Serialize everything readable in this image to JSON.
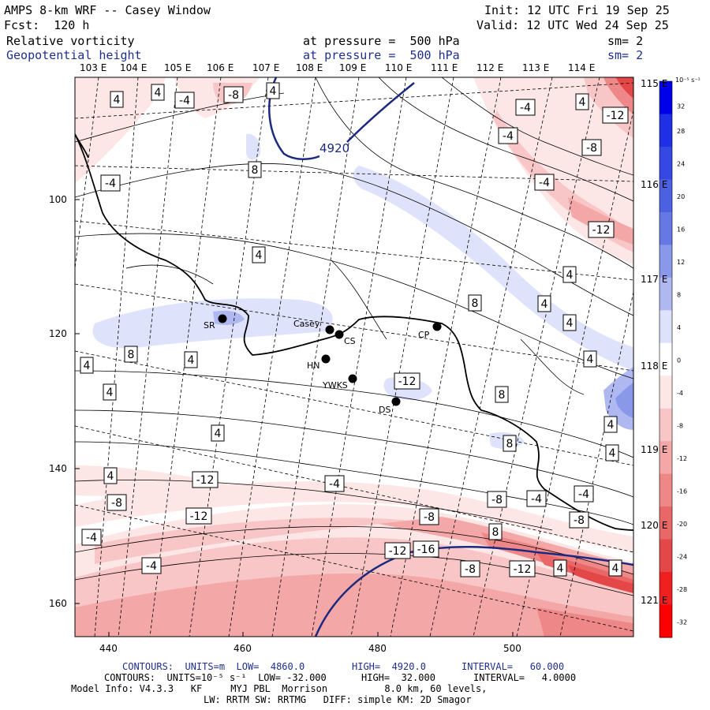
{
  "header": {
    "title": "AMPS 8-km WRF -- Casey Window",
    "forecast": "Fcst:  120 h",
    "init": "Init: 12 UTC Fri 19 Sep 25",
    "valid": "Valid: 12 UTC Wed 24 Sep 25",
    "field1_name": "Relative vorticity",
    "field1_level": "at pressure =  500 hPa",
    "field1_sm": "sm= 2",
    "field2_name": "Geopotential height",
    "field2_level": "at pressure =  500 hPa",
    "field2_sm": "sm= 2"
  },
  "lon_labels_top": [
    "103 E",
    "104 E",
    "105 E",
    "106 E",
    "107 E",
    "108 E",
    "109 E",
    "110 E",
    "111 E",
    "112 E",
    "113 E",
    "114 E"
  ],
  "lat_labels_right": [
    "115 E",
    "116 E",
    "117 E",
    "118 E",
    "119 E",
    "120 E",
    "121 E"
  ],
  "x_ticks": [
    "440",
    "460",
    "480",
    "500"
  ],
  "y_ticks": [
    "100",
    "120",
    "140",
    "160"
  ],
  "stations": [
    {
      "name": "SR"
    },
    {
      "name": "Casey"
    },
    {
      "name": "CS"
    },
    {
      "name": "CP"
    },
    {
      "name": "HN"
    },
    {
      "name": "YWKS"
    },
    {
      "name": "DS"
    }
  ],
  "height_contour_labels": [
    "4920"
  ],
  "vorticity_labels": [
    "4",
    "4",
    "-4",
    "-8",
    "4",
    "-4",
    "-4",
    "-12",
    "-4",
    "4",
    "8",
    "-4",
    "-8",
    "-12",
    "4",
    "4",
    "8",
    "4",
    "4",
    "4",
    "8",
    "4",
    "4",
    "4",
    "-12",
    "8",
    "4",
    "4",
    "8",
    "4",
    "4",
    "-8",
    "-12",
    "-4",
    "-8",
    "-4",
    "-4",
    "-8",
    "-12",
    "-8",
    "8",
    "-4",
    "-12",
    "-16",
    "-4",
    "-8",
    "-12",
    "4",
    "4"
  ],
  "colorbar": {
    "unit": "10⁻⁵ s⁻¹",
    "ticks": [
      "32",
      "28",
      "24",
      "20",
      "16",
      "12",
      "8",
      "4",
      "0",
      "-4",
      "-8",
      "-12",
      "-16",
      "-20",
      "-24",
      "-28",
      "-32"
    ],
    "colors": [
      "#0000e8",
      "#1f2fe6",
      "#3548e4",
      "#4c60e2",
      "#6678e6",
      "#8a98ea",
      "#b0b8f2",
      "#dfe2fb",
      "#ffffff",
      "#fde6e6",
      "#f8c6c6",
      "#f3a7a7",
      "#ee8787",
      "#e96767",
      "#e44747",
      "#f02020",
      "#ff0000"
    ]
  },
  "footer": {
    "line1_a": "CONTOURS:  UNITS=m  LOW=  4860.0",
    "line1_b": "HIGH=  4920.0",
    "line1_c": "INTERVAL=   60.000",
    "line2_a": "CONTOURS:  UNITS=10⁻⁵ s⁻¹  LOW= -32.000",
    "line2_b": "HIGH=  32.000",
    "line2_c": "INTERVAL=   4.0000",
    "line3": "Model Info: V4.3.3   KF     MYJ PBL  Morrison          8.0 km, 60 levels,",
    "line4": "LW: RRTM SW: RRTMG   DIFF: simple KM: 2D Smagor"
  }
}
